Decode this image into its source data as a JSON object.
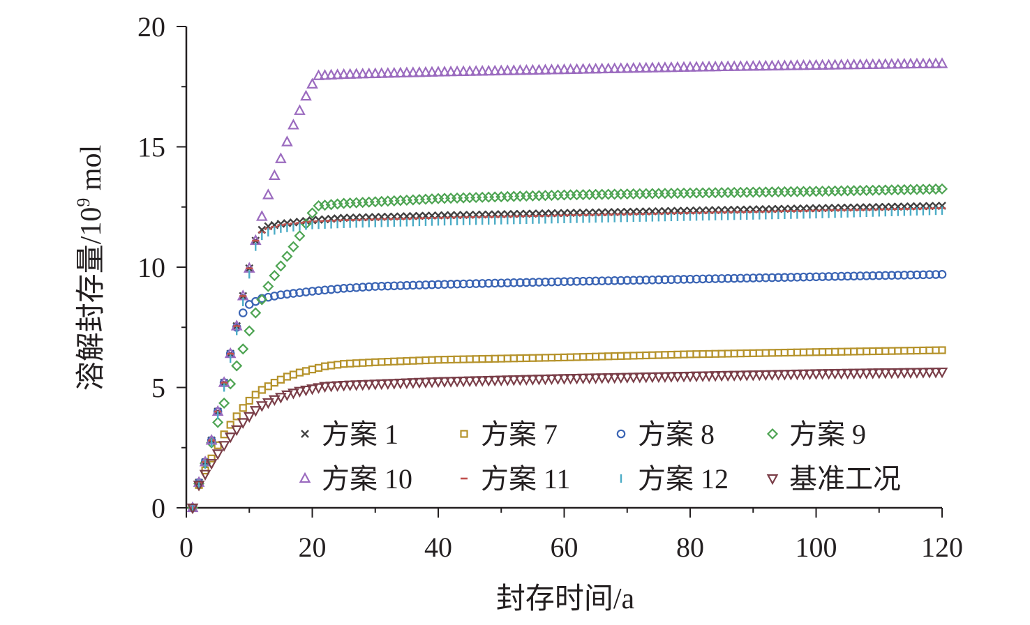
{
  "chart_data": {
    "type": "scatter",
    "xlabel": "封存时间/a",
    "ylabel": "溶解封存量/10⁹ mol",
    "ylabel_parts": {
      "main": "溶解封存量/10",
      "sup": "9",
      "unit": " mol"
    },
    "xlim": [
      0,
      120
    ],
    "ylim": [
      0,
      20
    ],
    "x_ticks": [
      0,
      20,
      40,
      60,
      80,
      100,
      120
    ],
    "x_tick_labels": [
      "0",
      "20",
      "40",
      "60",
      "80",
      "100",
      "120"
    ],
    "y_ticks": [
      0,
      5,
      10,
      15,
      20
    ],
    "y_tick_labels": [
      "0",
      "5",
      "10",
      "15",
      "20"
    ],
    "grid": false,
    "legend_position": "bottom-right",
    "x_start": 1,
    "x_end": 120,
    "series": [
      {
        "name": "方案 1",
        "marker": "x",
        "color": "#404040",
        "anchors": [
          [
            1,
            0
          ],
          [
            2,
            1.05
          ],
          [
            3,
            1.9
          ],
          [
            4,
            2.8
          ],
          [
            5,
            4.0
          ],
          [
            6,
            5.2
          ],
          [
            7,
            6.4
          ],
          [
            8,
            7.55
          ],
          [
            9,
            8.8
          ],
          [
            10,
            9.95
          ],
          [
            11,
            11.1
          ],
          [
            12,
            11.55
          ],
          [
            13,
            11.7
          ],
          [
            15,
            11.8
          ],
          [
            20,
            11.95
          ],
          [
            25,
            12.05
          ],
          [
            40,
            12.15
          ],
          [
            60,
            12.25
          ],
          [
            80,
            12.35
          ],
          [
            100,
            12.45
          ],
          [
            120,
            12.55
          ]
        ]
      },
      {
        "name": "方案 7",
        "marker": "square",
        "color": "#b5922a",
        "anchors": [
          [
            1,
            0
          ],
          [
            2,
            0.95
          ],
          [
            3,
            1.55
          ],
          [
            4,
            2.05
          ],
          [
            5,
            2.6
          ],
          [
            6,
            3.05
          ],
          [
            7,
            3.45
          ],
          [
            8,
            3.8
          ],
          [
            9,
            4.15
          ],
          [
            10,
            4.45
          ],
          [
            11,
            4.7
          ],
          [
            12,
            4.9
          ],
          [
            14,
            5.2
          ],
          [
            16,
            5.45
          ],
          [
            18,
            5.62
          ],
          [
            20,
            5.75
          ],
          [
            22,
            5.88
          ],
          [
            25,
            5.98
          ],
          [
            30,
            6.05
          ],
          [
            40,
            6.15
          ],
          [
            60,
            6.25
          ],
          [
            80,
            6.38
          ],
          [
            100,
            6.47
          ],
          [
            120,
            6.55
          ]
        ]
      },
      {
        "name": "方案 8",
        "marker": "circle",
        "color": "#3a64b4",
        "anchors": [
          [
            1,
            0
          ],
          [
            2,
            1.05
          ],
          [
            3,
            1.9
          ],
          [
            4,
            2.8
          ],
          [
            5,
            4.0
          ],
          [
            6,
            5.2
          ],
          [
            7,
            6.4
          ],
          [
            8,
            7.5
          ],
          [
            9,
            8.1
          ],
          [
            10,
            8.45
          ],
          [
            12,
            8.7
          ],
          [
            15,
            8.85
          ],
          [
            20,
            9.0
          ],
          [
            25,
            9.12
          ],
          [
            30,
            9.2
          ],
          [
            40,
            9.28
          ],
          [
            60,
            9.4
          ],
          [
            80,
            9.5
          ],
          [
            100,
            9.6
          ],
          [
            120,
            9.7
          ]
        ]
      },
      {
        "name": "方案 9",
        "marker": "diamond",
        "color": "#4ea453",
        "anchors": [
          [
            1,
            0
          ],
          [
            2,
            1.0
          ],
          [
            3,
            1.85
          ],
          [
            4,
            2.7
          ],
          [
            5,
            3.55
          ],
          [
            6,
            4.35
          ],
          [
            7,
            5.15
          ],
          [
            8,
            5.9
          ],
          [
            9,
            6.6
          ],
          [
            10,
            7.35
          ],
          [
            11,
            8.1
          ],
          [
            12,
            8.65
          ],
          [
            13,
            9.2
          ],
          [
            14,
            9.65
          ],
          [
            15,
            10.05
          ],
          [
            16,
            10.45
          ],
          [
            17,
            10.85
          ],
          [
            18,
            11.3
          ],
          [
            19,
            11.8
          ],
          [
            20,
            12.25
          ],
          [
            21,
            12.55
          ],
          [
            25,
            12.65
          ],
          [
            40,
            12.85
          ],
          [
            60,
            13.0
          ],
          [
            80,
            13.08
          ],
          [
            100,
            13.15
          ],
          [
            120,
            13.25
          ]
        ]
      },
      {
        "name": "方案 10",
        "marker": "triangle",
        "color": "#9b6bbf",
        "anchors": [
          [
            1,
            0
          ],
          [
            2,
            1.05
          ],
          [
            3,
            1.9
          ],
          [
            4,
            2.8
          ],
          [
            5,
            4.0
          ],
          [
            6,
            5.2
          ],
          [
            7,
            6.4
          ],
          [
            8,
            7.55
          ],
          [
            9,
            8.8
          ],
          [
            10,
            9.95
          ],
          [
            11,
            11.1
          ],
          [
            12,
            12.1
          ],
          [
            13,
            13.0
          ],
          [
            14,
            13.8
          ],
          [
            15,
            14.5
          ],
          [
            16,
            15.2
          ],
          [
            17,
            15.9
          ],
          [
            18,
            16.5
          ],
          [
            19,
            17.1
          ],
          [
            20,
            17.6
          ],
          [
            21,
            17.95
          ],
          [
            25,
            18.0
          ],
          [
            40,
            18.1
          ],
          [
            60,
            18.2
          ],
          [
            80,
            18.3
          ],
          [
            100,
            18.38
          ],
          [
            120,
            18.45
          ]
        ]
      },
      {
        "name": "方案 11",
        "marker": "dash",
        "color": "#c0504d",
        "anchors": [
          [
            1,
            0
          ],
          [
            2,
            1.05
          ],
          [
            3,
            1.9
          ],
          [
            4,
            2.8
          ],
          [
            5,
            4.0
          ],
          [
            6,
            5.2
          ],
          [
            7,
            6.4
          ],
          [
            8,
            7.55
          ],
          [
            9,
            8.8
          ],
          [
            10,
            9.95
          ],
          [
            11,
            11.1
          ],
          [
            12,
            11.45
          ],
          [
            13,
            11.6
          ],
          [
            15,
            11.75
          ],
          [
            20,
            11.9
          ],
          [
            25,
            11.95
          ],
          [
            40,
            12.05
          ],
          [
            60,
            12.15
          ],
          [
            80,
            12.25
          ],
          [
            100,
            12.35
          ],
          [
            120,
            12.45
          ]
        ]
      },
      {
        "name": "方案 12",
        "marker": "vtick",
        "color": "#4bacc6",
        "anchors": [
          [
            1,
            0
          ],
          [
            2,
            1.0
          ],
          [
            3,
            1.8
          ],
          [
            4,
            2.7
          ],
          [
            5,
            3.85
          ],
          [
            6,
            5.0
          ],
          [
            7,
            6.2
          ],
          [
            8,
            7.35
          ],
          [
            9,
            8.55
          ],
          [
            10,
            9.7
          ],
          [
            11,
            10.85
          ],
          [
            12,
            11.3
          ],
          [
            13,
            11.45
          ],
          [
            15,
            11.6
          ],
          [
            20,
            11.75
          ],
          [
            25,
            11.8
          ],
          [
            40,
            11.9
          ],
          [
            60,
            12.0
          ],
          [
            80,
            12.1
          ],
          [
            100,
            12.2
          ],
          [
            120,
            12.35
          ]
        ]
      },
      {
        "name": "基准工况",
        "marker": "tri-down",
        "color": "#7a3e48",
        "anchors": [
          [
            1,
            0
          ],
          [
            2,
            0.95
          ],
          [
            3,
            1.4
          ],
          [
            4,
            1.85
          ],
          [
            5,
            2.25
          ],
          [
            6,
            2.6
          ],
          [
            7,
            2.95
          ],
          [
            8,
            3.25
          ],
          [
            9,
            3.55
          ],
          [
            10,
            3.8
          ],
          [
            11,
            4.05
          ],
          [
            12,
            4.25
          ],
          [
            14,
            4.5
          ],
          [
            16,
            4.7
          ],
          [
            18,
            4.85
          ],
          [
            20,
            4.95
          ],
          [
            22,
            5.05
          ],
          [
            25,
            5.1
          ],
          [
            30,
            5.15
          ],
          [
            40,
            5.25
          ],
          [
            60,
            5.38
          ],
          [
            80,
            5.48
          ],
          [
            100,
            5.58
          ],
          [
            120,
            5.65
          ]
        ]
      }
    ]
  }
}
